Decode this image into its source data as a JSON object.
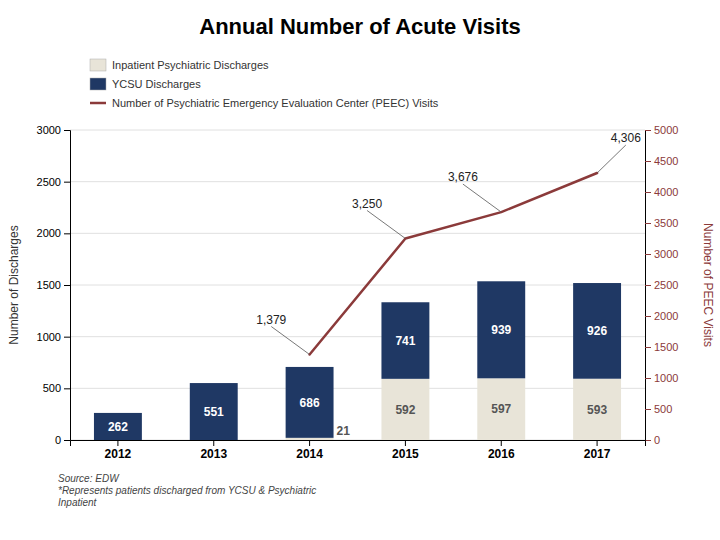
{
  "chart_data": {
    "type": "bar",
    "title": "Annual Number of Acute Visits",
    "categories": [
      "2012",
      "2013",
      "2014",
      "2015",
      "2016",
      "2017"
    ],
    "stacked": true,
    "grid": true,
    "legend": "top",
    "data_labels": true,
    "y_label": "Number of Discharges",
    "y2_label": "Number of PEEC Visits",
    "ylim": [
      0,
      3000
    ],
    "yticks": [
      0,
      500,
      1000,
      1500,
      2000,
      2500,
      3000
    ],
    "y2lim": [
      0,
      5000
    ],
    "y2ticks": [
      0,
      500,
      1000,
      1500,
      2000,
      2500,
      3000,
      3500,
      4000,
      4500,
      5000
    ],
    "series": [
      {
        "name": "Inpatient Psychiatric Discharges",
        "type": "bar",
        "color": "#E8E4D8",
        "values": [
          0,
          0,
          21,
          592,
          597,
          593
        ]
      },
      {
        "name": "YCSU Discharges",
        "type": "bar",
        "color": "#1F3864",
        "values": [
          262,
          551,
          686,
          741,
          939,
          926
        ]
      },
      {
        "name": "Number of Psychiatric Emergency Evaluation Center (PEEC) Visits",
        "type": "line",
        "axis": "y2",
        "color": "#8B3A3A",
        "values": [
          null,
          null,
          1379,
          3250,
          3676,
          4306
        ],
        "value_labels": [
          null,
          null,
          "1,379",
          "3,250",
          "3,676",
          "4,306"
        ]
      }
    ],
    "annotations": [
      "Source: EDW\n*Represents patients discharged from YCSU & Psychiatric\nInpatient"
    ]
  }
}
